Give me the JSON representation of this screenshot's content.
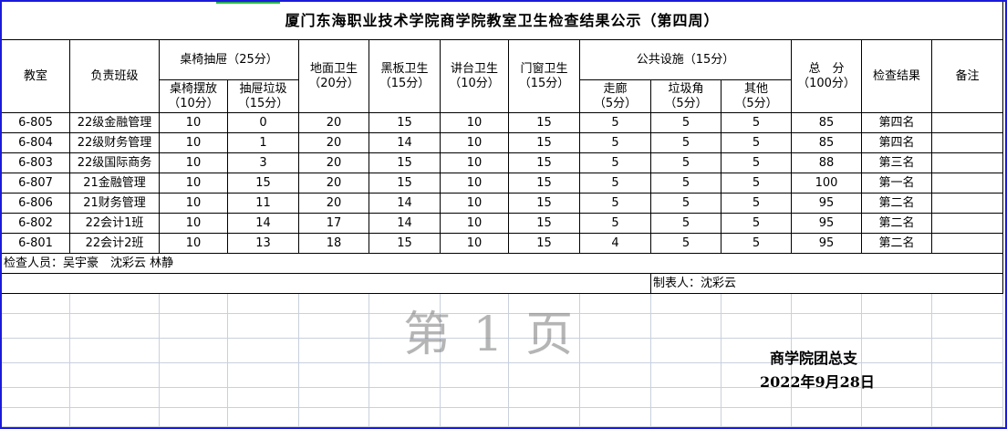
{
  "title": "厦门东海职业技术学院商学院教室卫生检查结果公示（第四周）",
  "headers": {
    "room": "教室",
    "class": "负责班级",
    "desk_group": "桌椅抽屉（25分）",
    "desk_arrange": [
      "桌椅摆放",
      "（10分）"
    ],
    "drawer_trash": [
      "抽屉垃圾",
      "（15分）"
    ],
    "floor": [
      "地面卫生",
      "（20分）"
    ],
    "blackboard": [
      "黑板卫生",
      "（15分）"
    ],
    "podium": [
      "讲台卫生",
      "（10分）"
    ],
    "window": [
      "门窗卫生",
      "（15分）"
    ],
    "public_group": "公共设施（15分）",
    "corridor": [
      "走廊",
      "（5分）"
    ],
    "trash_corner": [
      "垃圾角",
      "（5分）"
    ],
    "other": [
      "其他",
      "（5分）"
    ],
    "total": [
      "总　分",
      "（100分）"
    ],
    "result": "检查结果",
    "remarks": "备注"
  },
  "rows": [
    [
      "6-805",
      "22级金融管理",
      "10",
      "0",
      "20",
      "15",
      "10",
      "15",
      "5",
      "5",
      "5",
      "85",
      "第四名",
      ""
    ],
    [
      "6-804",
      "22级财务管理",
      "10",
      "1",
      "20",
      "14",
      "10",
      "15",
      "5",
      "5",
      "5",
      "85",
      "第四名",
      ""
    ],
    [
      "6-803",
      "22级国际商务",
      "10",
      "3",
      "20",
      "15",
      "10",
      "15",
      "5",
      "5",
      "5",
      "88",
      "第三名",
      ""
    ],
    [
      "6-807",
      "21金融管理",
      "10",
      "15",
      "20",
      "15",
      "10",
      "15",
      "5",
      "5",
      "5",
      "100",
      "第一名",
      ""
    ],
    [
      "6-806",
      "21财务管理",
      "10",
      "11",
      "20",
      "14",
      "10",
      "15",
      "5",
      "5",
      "5",
      "95",
      "第二名",
      ""
    ],
    [
      "6-802",
      "22会计1班",
      "10",
      "14",
      "17",
      "14",
      "10",
      "15",
      "5",
      "5",
      "5",
      "95",
      "第二名",
      ""
    ],
    [
      "6-801",
      "22会计2班",
      "10",
      "13",
      "18",
      "15",
      "10",
      "15",
      "4",
      "5",
      "5",
      "95",
      "第二名",
      ""
    ]
  ],
  "inspectors": "检查人员：吴宇豪　沈彩云 林静",
  "maker": "制表人：沈彩云",
  "watermark": "第 1 页",
  "signature": {
    "org": "商学院团总支",
    "date": "2022年9月28日"
  },
  "colors": {
    "border": "#1a1adc",
    "gridline": "#c9d0dd"
  }
}
